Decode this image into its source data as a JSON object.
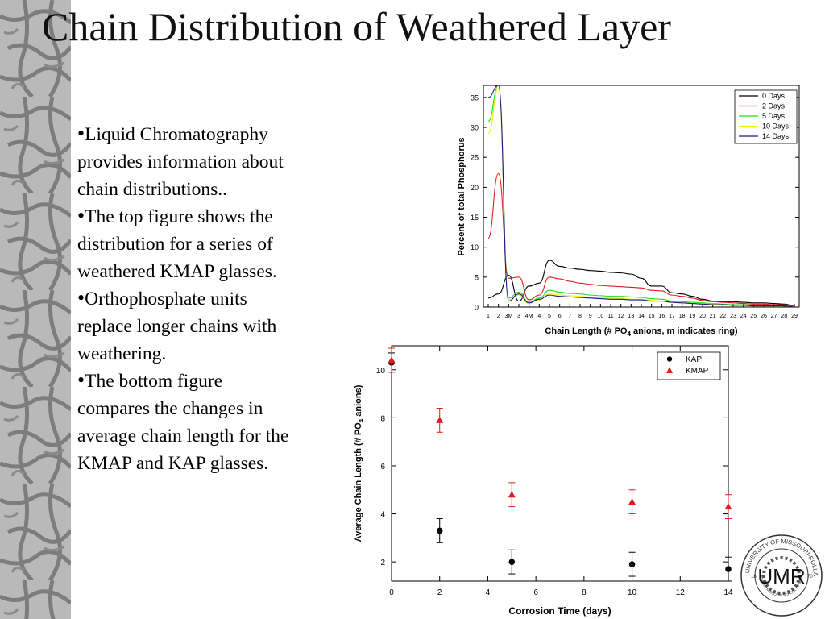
{
  "slide": {
    "title": "Chain Distribution of Weathered Layer",
    "bullets": [
      "Liquid Chromatography provides information about chain distributions..",
      "The top figure shows the distribution for a series of weathered KMAP glasses.",
      "Orthophosphate units replace longer chains with weathering.",
      "The bottom figure compares the changes in average chain length for the KMAP and KAP glasses."
    ]
  },
  "logo": {
    "letters": "UMR",
    "ring_text": "UNIVERSITY OF MISSOURI-ROLLA",
    "year_left": "18",
    "year_right": "70",
    "inner_text": "Formerly MISSOURI SCHOOL OF MINES AND METALLURGY"
  },
  "chart_data": [
    {
      "type": "line",
      "xlabel_main": "Chain Length (# PO",
      "xlabel_sub": "4",
      "xlabel_rest": " anions, m indicates ring)",
      "ylabel": "Percent of total Phosphorus",
      "categories": [
        "1",
        "2",
        "3M",
        "3",
        "4M",
        "4",
        "5",
        "6",
        "7",
        "8",
        "9",
        "10",
        "11",
        "12",
        "13",
        "14",
        "15",
        "16",
        "17",
        "18",
        "19",
        "20",
        "21",
        "22",
        "23",
        "24",
        "25",
        "26",
        "27",
        "28",
        "29"
      ],
      "ylim": [
        0,
        37
      ],
      "yticks": [
        0,
        5,
        10,
        15,
        20,
        25,
        30,
        35
      ],
      "legend_position": "top-right",
      "series": [
        {
          "name": "0 Days",
          "color": "#000000",
          "values": [
            1.5,
            2.2,
            5.3,
            1.0,
            3.5,
            4.0,
            7.8,
            6.8,
            6.5,
            6.3,
            6.1,
            6.0,
            5.8,
            5.7,
            5.5,
            4.8,
            3.5,
            3.5,
            2.4,
            2.2,
            1.8,
            1.3,
            1.0,
            0.9,
            0.9,
            0.8,
            0.7,
            0.7,
            0.6,
            0.5,
            0.2
          ]
        },
        {
          "name": "2 Days",
          "color": "#e11d1d",
          "values": [
            11.5,
            22.3,
            4.8,
            5.0,
            1.2,
            2.0,
            5.0,
            4.7,
            4.3,
            4.0,
            3.8,
            3.6,
            3.5,
            3.4,
            3.3,
            3.2,
            2.8,
            2.7,
            2.0,
            1.8,
            1.5,
            1.1,
            0.9,
            0.8,
            0.7,
            0.6,
            0.5,
            0.5,
            0.4,
            0.4,
            0.2
          ]
        },
        {
          "name": "5 Days",
          "color": "#22dd22",
          "values": [
            31.0,
            37.0,
            1.5,
            2.5,
            0.8,
            1.5,
            2.8,
            2.5,
            2.3,
            2.2,
            2.0,
            1.9,
            1.8,
            1.8,
            1.7,
            1.6,
            1.4,
            1.3,
            1.0,
            0.9,
            0.8,
            0.7,
            0.6,
            0.5,
            0.4,
            0.4,
            0.3,
            0.3,
            0.3,
            0.2,
            0.1
          ]
        },
        {
          "name": "10 Days",
          "color": "#f3f300",
          "values": [
            29.0,
            36.5,
            1.2,
            2.0,
            0.6,
            1.2,
            2.2,
            2.0,
            1.9,
            1.8,
            1.6,
            1.5,
            1.5,
            1.4,
            1.3,
            1.3,
            1.1,
            1.0,
            0.8,
            0.7,
            0.6,
            0.5,
            0.5,
            0.4,
            0.3,
            0.3,
            0.3,
            0.2,
            0.2,
            0.2,
            0.1
          ]
        },
        {
          "name": "14 Days",
          "color": "#1a1a8c",
          "values": [
            35.0,
            37.0,
            1.0,
            2.2,
            0.7,
            1.3,
            2.0,
            1.8,
            1.7,
            1.6,
            1.5,
            1.4,
            1.3,
            1.3,
            1.2,
            1.2,
            1.0,
            1.0,
            0.8,
            0.7,
            0.6,
            0.5,
            0.4,
            0.4,
            0.3,
            0.3,
            0.2,
            0.2,
            0.2,
            0.2,
            0.1
          ]
        }
      ]
    },
    {
      "type": "scatter",
      "xlabel": "Corrosion Time (days)",
      "ylabel_main": "Average Chain Length (# PO",
      "ylabel_sub": "4",
      "ylabel_rest": " anions)",
      "xlim": [
        0,
        14
      ],
      "ylim": [
        1.2,
        11
      ],
      "xticks": [
        0,
        2,
        4,
        6,
        8,
        10,
        12,
        14
      ],
      "yticks": [
        2,
        4,
        6,
        8,
        10
      ],
      "legend_position": "top-right",
      "series": [
        {
          "name": "KAP",
          "marker": "circle",
          "color": "#000000",
          "points": [
            {
              "x": 0,
              "y": 10.3,
              "err": 0.4
            },
            {
              "x": 2,
              "y": 3.3,
              "err": 0.5
            },
            {
              "x": 5,
              "y": 2.0,
              "err": 0.5
            },
            {
              "x": 10,
              "y": 1.9,
              "err": 0.5
            },
            {
              "x": 14,
              "y": 1.7,
              "err": 0.5
            }
          ]
        },
        {
          "name": "KMAP",
          "marker": "triangle",
          "color": "#e11d1d",
          "points": [
            {
              "x": 0,
              "y": 10.4,
              "err": 0.5
            },
            {
              "x": 2,
              "y": 7.9,
              "err": 0.5
            },
            {
              "x": 5,
              "y": 4.8,
              "err": 0.5
            },
            {
              "x": 10,
              "y": 4.5,
              "err": 0.5
            },
            {
              "x": 14,
              "y": 4.3,
              "err": 0.5
            }
          ]
        }
      ]
    }
  ]
}
